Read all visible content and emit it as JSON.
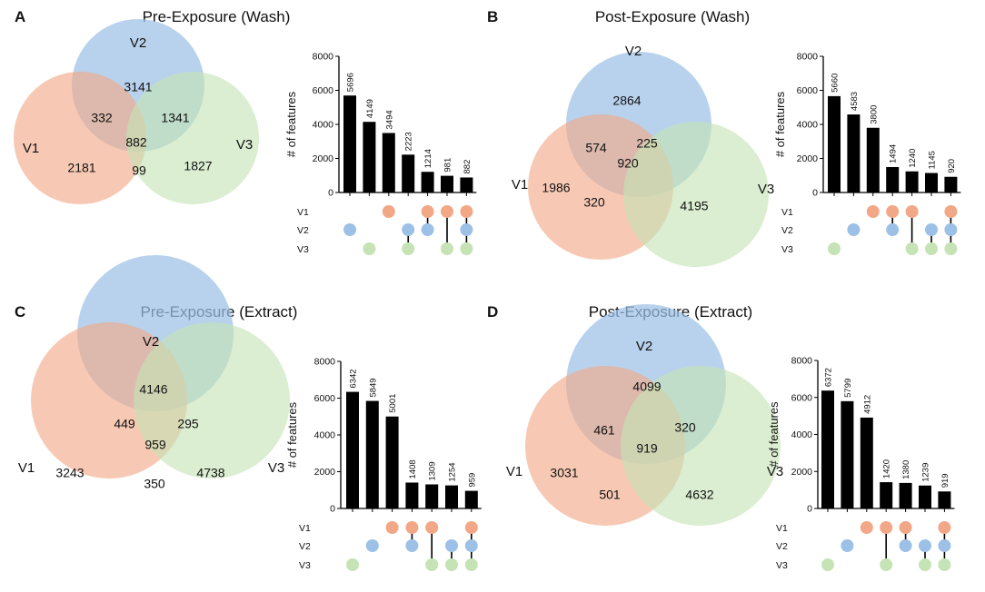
{
  "colors": {
    "v1": "#f2a886",
    "v2": "#9cc0e6",
    "v3": "#c5e3b5",
    "bar": "#000000",
    "dot_empty": "#e8e8e8"
  },
  "chart_data": [
    {
      "type": "venn",
      "panel_label": "A",
      "title": "Pre-Exposure (Wash)",
      "set_labels": [
        "V1",
        "V2",
        "V3"
      ],
      "regions": {
        "v1_only": 2181,
        "v2_only": 3141,
        "v3_only": 1827,
        "v1_v2": 332,
        "v2_v3": 1341,
        "v1_v3": 99,
        "all": 882
      },
      "upset": {
        "type": "bar",
        "ylabel": "# of features",
        "ylim": [
          0,
          8000
        ],
        "yticks": [
          0,
          2000,
          4000,
          6000,
          8000
        ],
        "values": [
          5696,
          4149,
          3494,
          2223,
          1214,
          981,
          882
        ],
        "labels": [
          "5696",
          "4149",
          "3494",
          "2223",
          "1214",
          "981",
          "882"
        ],
        "sets": [
          "V1",
          "V2",
          "V3"
        ],
        "membership": [
          [
            0,
            1,
            0
          ],
          [
            0,
            0,
            1
          ],
          [
            1,
            0,
            0
          ],
          [
            0,
            1,
            1
          ],
          [
            1,
            1,
            0
          ],
          [
            1,
            0,
            1
          ],
          [
            1,
            1,
            1
          ]
        ]
      }
    },
    {
      "type": "venn",
      "panel_label": "B",
      "title": "Post-Exposure (Wash)",
      "set_labels": [
        "V1",
        "V2",
        "V3"
      ],
      "regions": {
        "v1_only": 1986,
        "v2_only": 2864,
        "v3_only": 4195,
        "v1_v2": 574,
        "v2_v3": 225,
        "v1_v3": 320,
        "all": 920
      },
      "upset": {
        "type": "bar",
        "ylabel": "# of features",
        "ylim": [
          0,
          8000
        ],
        "yticks": [
          0,
          2000,
          4000,
          6000,
          8000
        ],
        "values": [
          5660,
          4583,
          3800,
          1494,
          1240,
          1145,
          920
        ],
        "labels": [
          "5660",
          "4583",
          "3800",
          "1494",
          "1240",
          "1145",
          "920"
        ],
        "sets": [
          "V1",
          "V2",
          "V3"
        ],
        "membership": [
          [
            0,
            0,
            1
          ],
          [
            0,
            1,
            0
          ],
          [
            1,
            0,
            0
          ],
          [
            1,
            1,
            0
          ],
          [
            1,
            0,
            1
          ],
          [
            0,
            1,
            1
          ],
          [
            1,
            1,
            1
          ]
        ]
      }
    },
    {
      "type": "venn",
      "panel_label": "C",
      "title": "Pre-Exposure (Extract)",
      "set_labels": [
        "V1",
        "V2",
        "V3"
      ],
      "regions": {
        "v1_only": 3243,
        "v2_only": 4146,
        "v3_only": 4738,
        "v1_v2": 449,
        "v2_v3": 295,
        "v1_v3": 350,
        "all": 959
      },
      "upset": {
        "type": "bar",
        "ylabel": "# of features",
        "ylim": [
          0,
          8000
        ],
        "yticks": [
          0,
          2000,
          4000,
          6000,
          8000
        ],
        "values": [
          6342,
          5849,
          5001,
          1408,
          1309,
          1254,
          959
        ],
        "labels": [
          "6342",
          "5849",
          "5001",
          "1408",
          "1309",
          "1254",
          "959"
        ],
        "sets": [
          "V1",
          "V2",
          "V3"
        ],
        "membership": [
          [
            0,
            0,
            1
          ],
          [
            0,
            1,
            0
          ],
          [
            1,
            0,
            0
          ],
          [
            1,
            1,
            0
          ],
          [
            1,
            0,
            1
          ],
          [
            0,
            1,
            1
          ],
          [
            1,
            1,
            1
          ]
        ]
      }
    },
    {
      "type": "venn",
      "panel_label": "D",
      "title": "Post-Exposure (Extract)",
      "set_labels": [
        "V1",
        "V2",
        "V3"
      ],
      "regions": {
        "v1_only": 3031,
        "v2_only": 4099,
        "v3_only": 4632,
        "v1_v2": 461,
        "v2_v3": 320,
        "v1_v3": 501,
        "all": 919
      },
      "upset": {
        "type": "bar",
        "ylabel": "# of features",
        "ylim": [
          0,
          8000
        ],
        "yticks": [
          0,
          2000,
          4000,
          6000,
          8000
        ],
        "values": [
          6372,
          5799,
          4912,
          1420,
          1380,
          1239,
          919
        ],
        "labels": [
          "6372",
          "5799",
          "4912",
          "1420",
          "1380",
          "1239",
          "919"
        ],
        "sets": [
          "V1",
          "V2",
          "V3"
        ],
        "membership": [
          [
            0,
            0,
            1
          ],
          [
            0,
            1,
            0
          ],
          [
            1,
            0,
            0
          ],
          [
            1,
            0,
            1
          ],
          [
            1,
            1,
            0
          ],
          [
            0,
            1,
            1
          ],
          [
            1,
            1,
            1
          ]
        ]
      }
    }
  ]
}
